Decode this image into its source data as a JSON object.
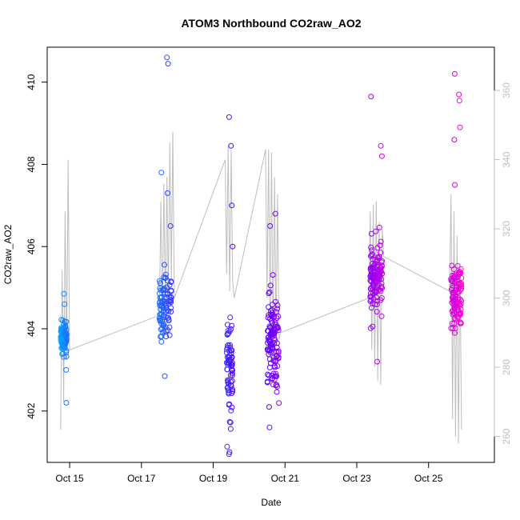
{
  "chart_data": {
    "type": "scatter",
    "title": "ATOM3 Northbound CO2raw_AO2",
    "xlabel": "Date",
    "ylabel": "CO2raw_AO2",
    "x_range": [
      "2016-10-14 09:00",
      "2016-10-26 20:00"
    ],
    "ylim": [
      400.75,
      410.85
    ],
    "ylim_right": [
      252.5,
      372.5
    ],
    "x_ticks": [
      {
        "date": "2016-10-15",
        "label": "Oct 15"
      },
      {
        "date": "2016-10-17",
        "label": "Oct 17"
      },
      {
        "date": "2016-10-19",
        "label": "Oct 19"
      },
      {
        "date": "2016-10-21",
        "label": "Oct 21"
      },
      {
        "date": "2016-10-23",
        "label": "Oct 23"
      },
      {
        "date": "2016-10-25",
        "label": "Oct 25"
      }
    ],
    "y_ticks": [
      402,
      404,
      406,
      408,
      410
    ],
    "y_ticks_right": [
      260,
      280,
      300,
      320,
      340,
      360
    ],
    "grid": false,
    "colors": {
      "axis": "#000000",
      "right_axis": "#bebebe",
      "secondary_line": "#bebebe",
      "color_start": "#00a5ff",
      "color_mid": "#5500ff",
      "color_end": "#ff00d4"
    },
    "clusters": [
      {
        "start": "2016-10-14 18:00",
        "end": "2016-10-14 22:00",
        "n": 95,
        "center": 403.8,
        "spread": 0.35,
        "outliers": [
          402.2,
          404.85,
          404.6,
          403.0
        ]
      },
      {
        "start": "2016-10-17 12:00",
        "end": "2016-10-17 20:00",
        "n": 100,
        "center": 404.6,
        "spread": 0.7,
        "outliers": [
          410.6,
          410.45,
          407.8,
          407.3,
          402.85,
          406.5
        ]
      },
      {
        "start": "2016-10-19 09:00",
        "end": "2016-10-19 13:00",
        "n": 80,
        "center": 403.0,
        "spread": 1.0,
        "outliers": [
          409.15,
          408.45,
          407.0,
          406.0,
          400.95,
          401.0
        ]
      },
      {
        "start": "2016-10-20 12:00",
        "end": "2016-10-20 20:00",
        "n": 120,
        "center": 403.8,
        "spread": 1.0,
        "outliers": [
          402.1,
          401.6,
          406.8,
          406.5
        ]
      },
      {
        "start": "2016-10-23 09:00",
        "end": "2016-10-23 17:00",
        "n": 130,
        "center": 405.2,
        "spread": 0.75,
        "outliers": [
          409.65,
          408.45,
          408.2,
          403.2
        ]
      },
      {
        "start": "2016-10-25 15:00",
        "end": "2016-10-25 22:00",
        "n": 110,
        "center": 404.8,
        "spread": 0.6,
        "outliers": [
          410.2,
          409.7,
          409.55,
          408.9,
          408.6,
          407.5,
          403.9
        ]
      }
    ],
    "secondary_series": {
      "axis": "right",
      "type": "line",
      "points": [
        [
          "2016-10-14 18:00",
          262
        ],
        [
          "2016-10-14 19:00",
          308
        ],
        [
          "2016-10-14 20:00",
          270
        ],
        [
          "2016-10-14 21:00",
          325
        ],
        [
          "2016-10-14 22:00",
          282
        ],
        [
          "2016-10-14 23:00",
          340
        ],
        [
          "2016-10-15 00:00",
          285
        ],
        [
          "2016-10-17 12:00",
          295
        ],
        [
          "2016-10-17 13:00",
          328
        ],
        [
          "2016-10-17 14:00",
          292
        ],
        [
          "2016-10-17 15:00",
          333
        ],
        [
          "2016-10-17 16:00",
          296
        ],
        [
          "2016-10-17 17:00",
          335
        ],
        [
          "2016-10-17 18:00",
          300
        ],
        [
          "2016-10-17 19:00",
          345
        ],
        [
          "2016-10-17 20:00",
          305
        ],
        [
          "2016-10-17 21:00",
          348
        ],
        [
          "2016-10-17 22:00",
          300
        ],
        [
          "2016-10-19 08:00",
          340
        ],
        [
          "2016-10-19 09:00",
          307
        ],
        [
          "2016-10-19 10:00",
          344
        ],
        [
          "2016-10-19 11:00",
          302
        ],
        [
          "2016-10-19 12:00",
          343
        ],
        [
          "2016-10-19 13:00",
          305
        ],
        [
          "2016-10-19 14:00",
          300
        ],
        [
          "2016-10-20 11:00",
          343
        ],
        [
          "2016-10-20 12:00",
          300
        ],
        [
          "2016-10-20 13:00",
          343
        ],
        [
          "2016-10-20 14:00",
          292
        ],
        [
          "2016-10-20 15:00",
          342
        ],
        [
          "2016-10-20 16:00",
          287
        ],
        [
          "2016-10-20 17:00",
          335
        ],
        [
          "2016-10-20 18:00",
          290
        ],
        [
          "2016-10-20 19:00",
          330
        ],
        [
          "2016-10-20 20:00",
          288
        ],
        [
          "2016-10-20 21:00",
          290
        ],
        [
          "2016-10-23 08:00",
          300
        ],
        [
          "2016-10-23 09:00",
          325
        ],
        [
          "2016-10-23 10:00",
          285
        ],
        [
          "2016-10-23 11:00",
          327
        ],
        [
          "2016-10-23 12:00",
          280
        ],
        [
          "2016-10-23 13:00",
          328
        ],
        [
          "2016-10-23 14:00",
          276
        ],
        [
          "2016-10-23 15:00",
          322
        ],
        [
          "2016-10-23 16:00",
          275
        ],
        [
          "2016-10-23 17:00",
          320
        ],
        [
          "2016-10-23 18:00",
          312
        ],
        [
          "2016-10-25 14:00",
          302
        ],
        [
          "2016-10-25 15:00",
          330
        ],
        [
          "2016-10-25 16:00",
          265
        ],
        [
          "2016-10-25 17:00",
          325
        ],
        [
          "2016-10-25 18:00",
          260
        ],
        [
          "2016-10-25 19:00",
          318
        ],
        [
          "2016-10-25 20:00",
          258
        ],
        [
          "2016-10-25 21:00",
          310
        ],
        [
          "2016-10-25 22:00",
          262
        ]
      ]
    }
  }
}
